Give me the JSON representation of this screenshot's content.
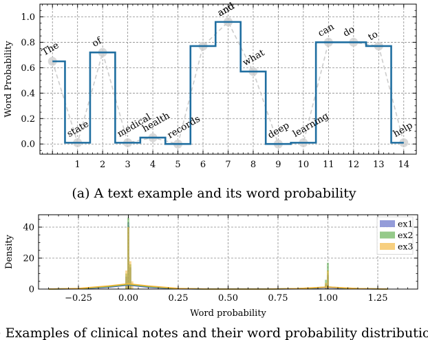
{
  "chart_data": [
    {
      "type": "line",
      "step": "mid",
      "caption": "(a) A text example and its word probability",
      "ylabel": "Word Probability",
      "xlabel": "",
      "xlim": [
        -0.5,
        14.5
      ],
      "ylim": [
        -0.08,
        1.1
      ],
      "xticks": [
        1,
        2,
        3,
        4,
        5,
        6,
        7,
        8,
        9,
        10,
        11,
        12,
        13,
        14
      ],
      "yticks": [
        "0.0",
        "0.2",
        "0.4",
        "0.6",
        "0.8",
        "1.0"
      ],
      "grid": true,
      "colors": {
        "step_line": "#1f6ea0",
        "scatter_line": "#cccccc",
        "scatter_marker": "#cfcfcf"
      },
      "words": [
        "The",
        "state",
        "of",
        "medical",
        "health",
        "records",
        "",
        "and",
        "what",
        "deep",
        "learning",
        "can",
        "do",
        "to",
        "help"
      ],
      "x": [
        0,
        1,
        2,
        3,
        4,
        5,
        6,
        7,
        8,
        9,
        10,
        11,
        12,
        13,
        14
      ],
      "values": [
        0.65,
        0.01,
        0.72,
        0.01,
        0.05,
        0.0,
        0.77,
        0.96,
        0.57,
        0.0,
        0.01,
        0.8,
        0.8,
        0.77,
        0.01
      ]
    },
    {
      "type": "histogram",
      "caption": "(b) Examples of clinical notes and their word probability distributions",
      "xlabel": "Word probability",
      "ylabel": "Density",
      "xlim": [
        -0.45,
        1.45
      ],
      "ylim": [
        0,
        48
      ],
      "xticks": [
        "−0.25",
        "0.00",
        "0.25",
        "0.50",
        "0.75",
        "1.00",
        "1.25"
      ],
      "xtick_values": [
        -0.25,
        0.0,
        0.25,
        0.5,
        0.75,
        1.0,
        1.25
      ],
      "yticks": [
        "0",
        "20",
        "40"
      ],
      "ytick_values": [
        0,
        20,
        40
      ],
      "grid": true,
      "legend_position": "top-right",
      "series": [
        {
          "name": "ex1",
          "color": "#5a67c4",
          "bins": [
            {
              "x": -0.01,
              "density": 8
            },
            {
              "x": 0.0,
              "density": 43
            },
            {
              "x": 0.01,
              "density": 14
            },
            {
              "x": 0.99,
              "density": 3
            },
            {
              "x": 1.0,
              "density": 9
            }
          ],
          "kde": [
            [
              -0.4,
              0.0
            ],
            [
              -0.25,
              0.2
            ],
            [
              -0.1,
              1.2
            ],
            [
              0.0,
              2.6
            ],
            [
              0.1,
              1.2
            ],
            [
              0.25,
              0.2
            ],
            [
              0.4,
              0.0
            ],
            [
              0.7,
              0.0
            ],
            [
              0.85,
              0.2
            ],
            [
              0.95,
              0.7
            ],
            [
              1.0,
              1.0
            ],
            [
              1.05,
              0.7
            ],
            [
              1.15,
              0.2
            ],
            [
              1.3,
              0.0
            ]
          ]
        },
        {
          "name": "ex2",
          "color": "#5cad4c",
          "bins": [
            {
              "x": -0.01,
              "density": 10
            },
            {
              "x": 0.0,
              "density": 46
            },
            {
              "x": 0.01,
              "density": 16
            },
            {
              "x": 0.99,
              "density": 6
            },
            {
              "x": 1.0,
              "density": 17
            }
          ],
          "kde": [
            [
              -0.4,
              0.0
            ],
            [
              -0.25,
              0.3
            ],
            [
              -0.1,
              1.6
            ],
            [
              0.0,
              3.0
            ],
            [
              0.1,
              1.6
            ],
            [
              0.25,
              0.3
            ],
            [
              0.4,
              0.0
            ],
            [
              0.7,
              0.0
            ],
            [
              0.85,
              0.3
            ],
            [
              0.95,
              0.9
            ],
            [
              1.0,
              1.4
            ],
            [
              1.05,
              0.9
            ],
            [
              1.15,
              0.3
            ],
            [
              1.3,
              0.0
            ]
          ]
        },
        {
          "name": "ex3",
          "color": "#f2b53a",
          "bins": [
            {
              "x": -0.01,
              "density": 12
            },
            {
              "x": 0.0,
              "density": 40
            },
            {
              "x": 0.01,
              "density": 18
            },
            {
              "x": 0.02,
              "density": 5
            },
            {
              "x": 0.99,
              "density": 4
            },
            {
              "x": 1.0,
              "density": 12
            }
          ],
          "kde": [
            [
              -0.4,
              0.0
            ],
            [
              -0.25,
              0.4
            ],
            [
              -0.1,
              2.0
            ],
            [
              0.0,
              3.4
            ],
            [
              0.1,
              2.0
            ],
            [
              0.25,
              0.4
            ],
            [
              0.4,
              0.0
            ],
            [
              0.7,
              0.0
            ],
            [
              0.85,
              0.3
            ],
            [
              0.95,
              1.0
            ],
            [
              1.0,
              1.3
            ],
            [
              1.05,
              1.0
            ],
            [
              1.15,
              0.3
            ],
            [
              1.3,
              0.0
            ]
          ]
        }
      ]
    }
  ]
}
